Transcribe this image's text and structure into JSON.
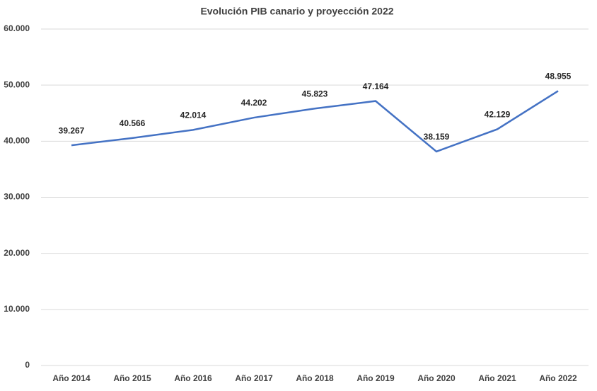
{
  "chart_data": {
    "type": "line",
    "title": "Evolución PIB canario y proyección 2022",
    "categories": [
      "Año 2014",
      "Año 2015",
      "Año 2016",
      "Año 2017",
      "Año 2018",
      "Año 2019",
      "Año 2020",
      "Año 2021",
      "Año 2022"
    ],
    "series": [
      {
        "name": "PIB",
        "color": "#4472c4",
        "values": [
          39267,
          40566,
          42014,
          44202,
          45823,
          47164,
          38159,
          42129,
          48955
        ],
        "value_labels": [
          "39.267",
          "40.566",
          "42.014",
          "44.202",
          "45.823",
          "47.164",
          "38.159",
          "42.129",
          "48.955"
        ]
      }
    ],
    "ylim": [
      0,
      60000
    ],
    "yticks": [
      0,
      {
        "value": 10000,
        "label": "10.000"
      },
      {
        "value": 20000,
        "label": "20.000"
      },
      {
        "value": 30000,
        "label": "30.000"
      },
      {
        "value": 40000,
        "label": "40.000"
      },
      {
        "value": 50000,
        "label": "50.000"
      },
      {
        "value": 60000,
        "label": "60.000"
      }
    ],
    "grid": true
  }
}
